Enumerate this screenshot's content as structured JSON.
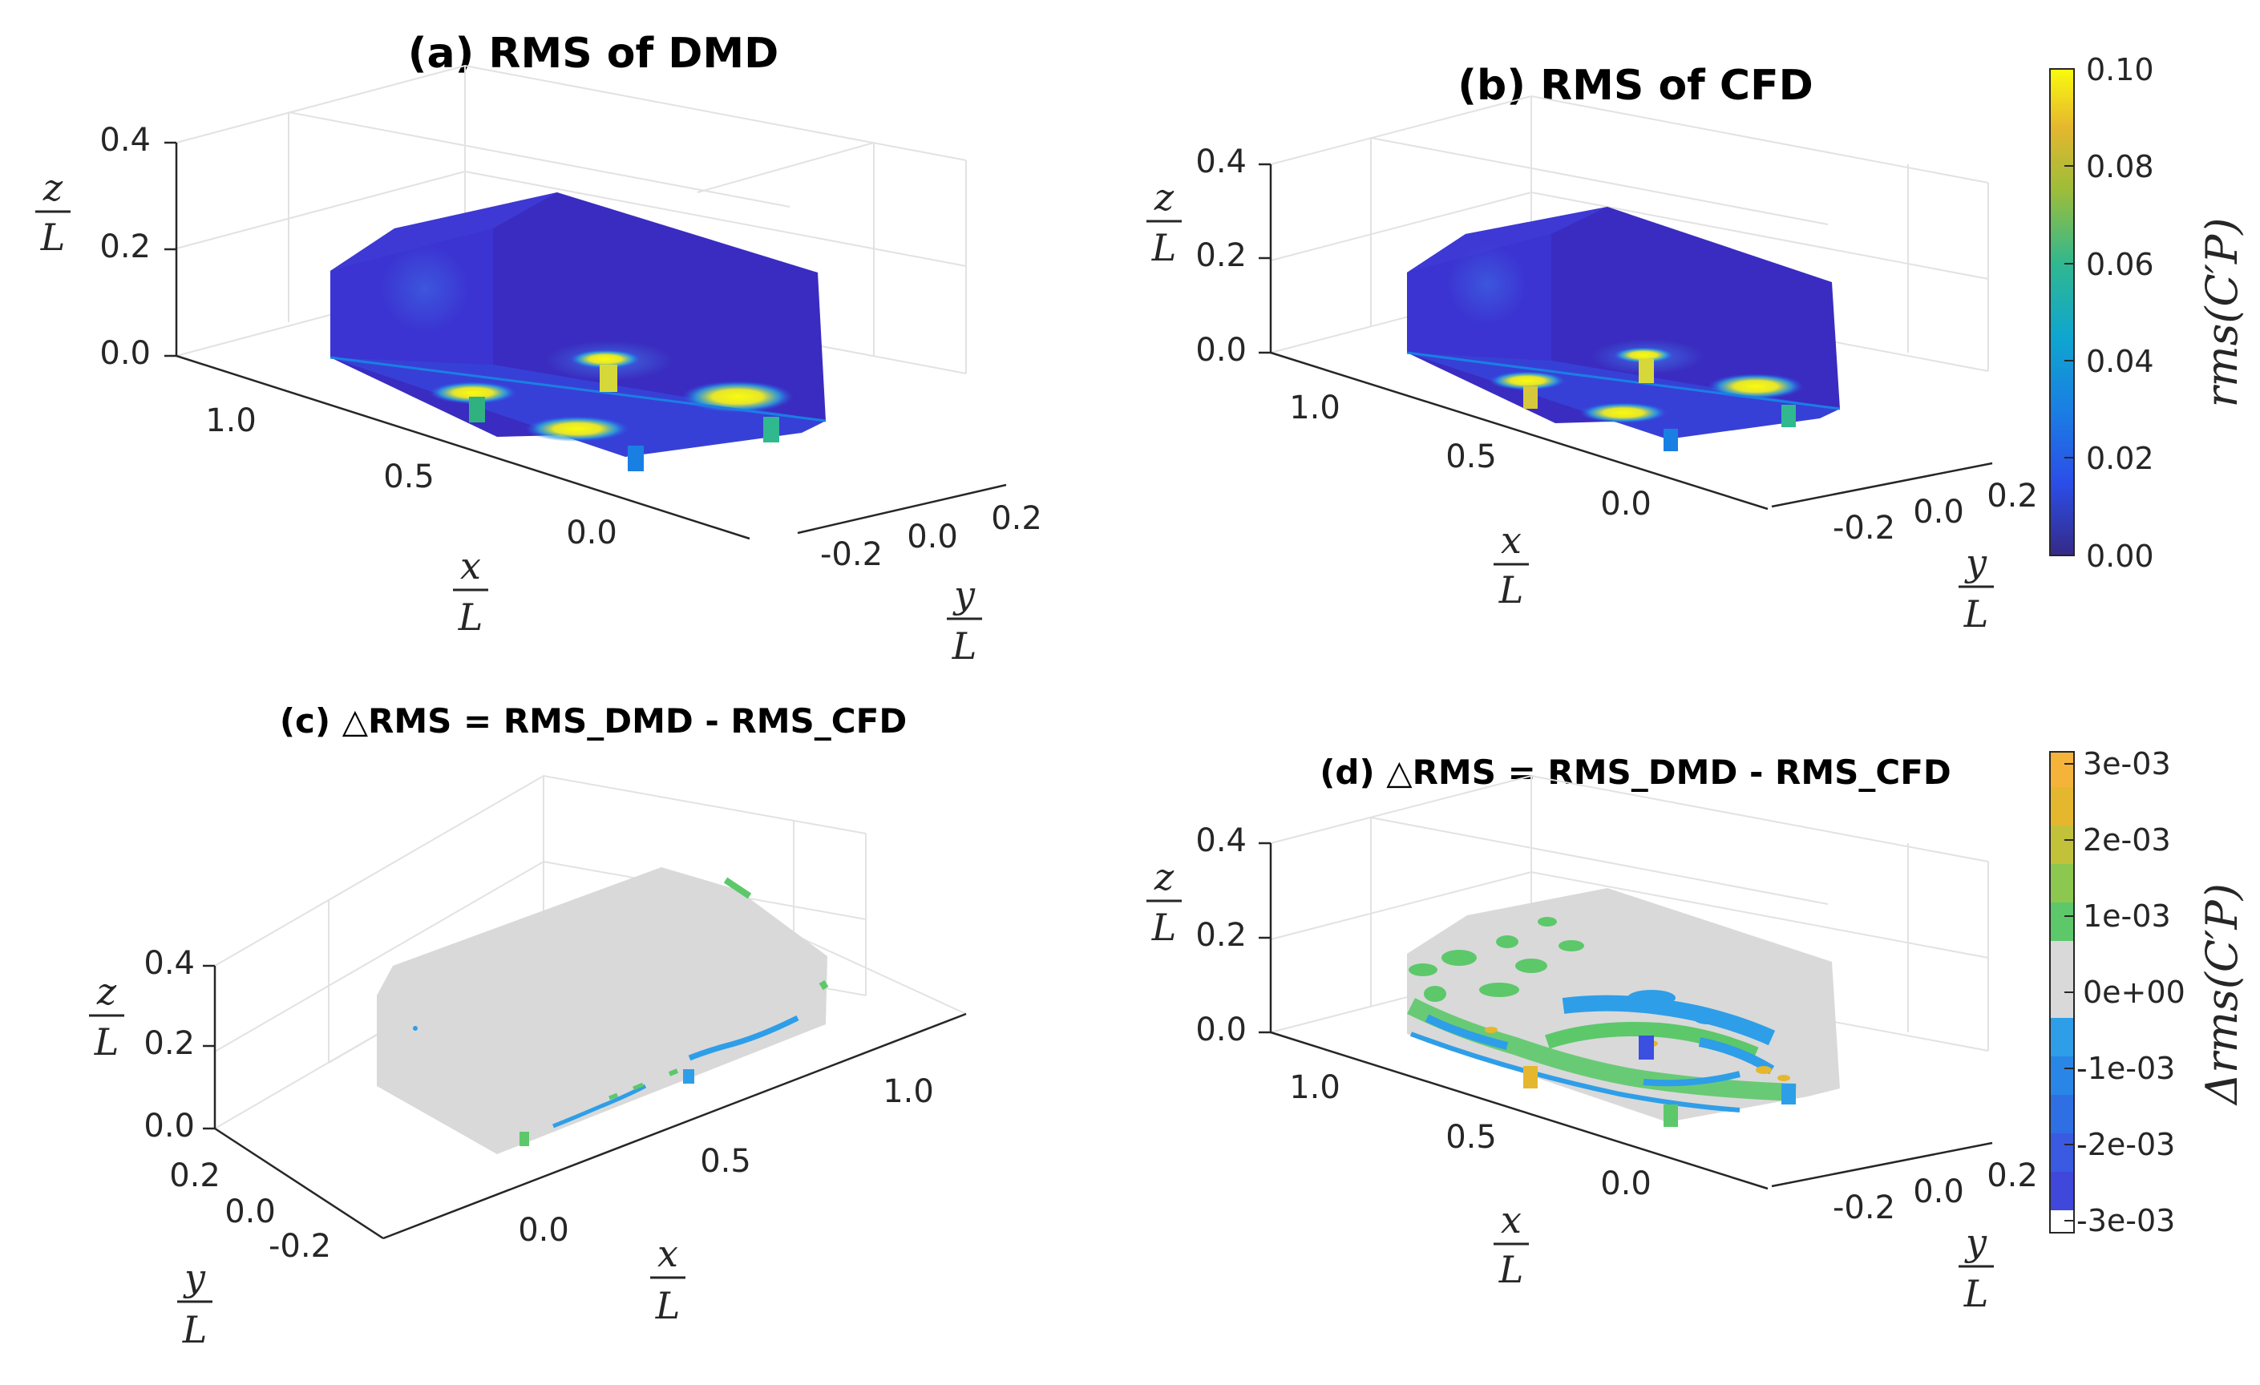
{
  "figure": {
    "panel_a": {
      "title": "(a) RMS of DMD",
      "z_ticks": [
        "0.4",
        "0.2",
        "0.0"
      ],
      "x_ticks": [
        "1.0",
        "0.5",
        "0.0"
      ],
      "y_ticks": [
        "-0.2",
        "0.0",
        "0.2"
      ],
      "z_num": "z",
      "x_num": "x",
      "y_num": "y",
      "den": "L"
    },
    "panel_b": {
      "title": "(b) RMS of CFD",
      "z_ticks": [
        "0.4",
        "0.2",
        "0.0"
      ],
      "x_ticks": [
        "1.0",
        "0.5",
        "0.0"
      ],
      "y_ticks": [
        "-0.2",
        "0.0",
        "0.2"
      ],
      "z_num": "z",
      "x_num": "x",
      "y_num": "y",
      "den": "L"
    },
    "panel_c": {
      "title": "(c) △RMS = RMS_DMD - RMS_CFD",
      "z_ticks": [
        "0.4",
        "0.2",
        "0.0"
      ],
      "x_ticks": [
        "0.0",
        "0.5",
        "1.0"
      ],
      "y_ticks": [
        "0.2",
        "0.0",
        "-0.2"
      ],
      "z_num": "z",
      "x_num": "x",
      "y_num": "y",
      "den": "L"
    },
    "panel_d": {
      "title": "(d) △RMS = RMS_DMD - RMS_CFD",
      "z_ticks": [
        "0.4",
        "0.2",
        "0.0"
      ],
      "x_ticks": [
        "1.0",
        "0.5",
        "0.0"
      ],
      "y_ticks": [
        "-0.2",
        "0.0",
        "0.2"
      ],
      "z_num": "z",
      "x_num": "x",
      "y_num": "y",
      "den": "L"
    },
    "colorbar_rms": {
      "label": "rms(C′P)",
      "ticks": [
        "0.10",
        "0.08",
        "0.06",
        "0.04",
        "0.02",
        "0.00"
      ]
    },
    "colorbar_diff": {
      "label": "Δrms(C′P)",
      "ticks": [
        "3e-03",
        "2e-03",
        "1e-03",
        "0e+00",
        "-1e-03",
        "-2e-03",
        "-3e-03"
      ]
    },
    "colors": {
      "surface_low": "#3a2fc8",
      "hot_spot": "#f5e62a",
      "grey_zero": "#d9d9d9",
      "blue_neg": "#2e9ee8",
      "green_pos": "#5cc86a"
    }
  },
  "chart_data": [
    {
      "type": "heatmap",
      "title": "(a) RMS of DMD",
      "zlabel": "z/L",
      "xlabel": "x/L",
      "ylabel": "y/L",
      "z_ticks": [
        0.0,
        0.2,
        0.4
      ],
      "x_ticks": [
        0.0,
        0.5,
        1.0
      ],
      "y_ticks": [
        -0.2,
        0.0,
        0.2
      ],
      "colorbar": {
        "label": "rms(C'P)",
        "range": [
          0.0,
          0.1
        ],
        "ticks": [
          0.0,
          0.02,
          0.04,
          0.06,
          0.08,
          0.1
        ]
      }
    },
    {
      "type": "heatmap",
      "title": "(b) RMS of CFD",
      "zlabel": "z/L",
      "xlabel": "x/L",
      "ylabel": "y/L",
      "z_ticks": [
        0.0,
        0.2,
        0.4
      ],
      "x_ticks": [
        0.0,
        0.5,
        1.0
      ],
      "y_ticks": [
        -0.2,
        0.0,
        0.2
      ],
      "colorbar": {
        "label": "rms(C'P)",
        "range": [
          0.0,
          0.1
        ],
        "ticks": [
          0.0,
          0.02,
          0.04,
          0.06,
          0.08,
          0.1
        ]
      }
    },
    {
      "type": "heatmap",
      "title": "(c) △RMS = RMS_DMD - RMS_CFD",
      "zlabel": "z/L",
      "xlabel": "x/L",
      "ylabel": "y/L",
      "z_ticks": [
        0.0,
        0.2,
        0.4
      ],
      "x_ticks": [
        0.0,
        0.5,
        1.0
      ],
      "y_ticks": [
        -0.2,
        0.0,
        0.2
      ],
      "colorbar": {
        "label": "Δrms(C'P)",
        "range": [
          -0.003,
          0.003
        ],
        "ticks": [
          -0.003,
          -0.002,
          -0.001,
          0.0,
          0.001,
          0.002,
          0.003
        ]
      }
    },
    {
      "type": "heatmap",
      "title": "(d) △RMS = RMS_DMD - RMS_CFD",
      "zlabel": "z/L",
      "xlabel": "x/L",
      "ylabel": "y/L",
      "z_ticks": [
        0.0,
        0.2,
        0.4
      ],
      "x_ticks": [
        0.0,
        0.5,
        1.0
      ],
      "y_ticks": [
        -0.2,
        0.0,
        0.2
      ],
      "colorbar": {
        "label": "Δrms(C'P)",
        "range": [
          -0.003,
          0.003
        ],
        "ticks": [
          -0.003,
          -0.002,
          -0.001,
          0.0,
          0.001,
          0.002,
          0.003
        ]
      }
    }
  ]
}
